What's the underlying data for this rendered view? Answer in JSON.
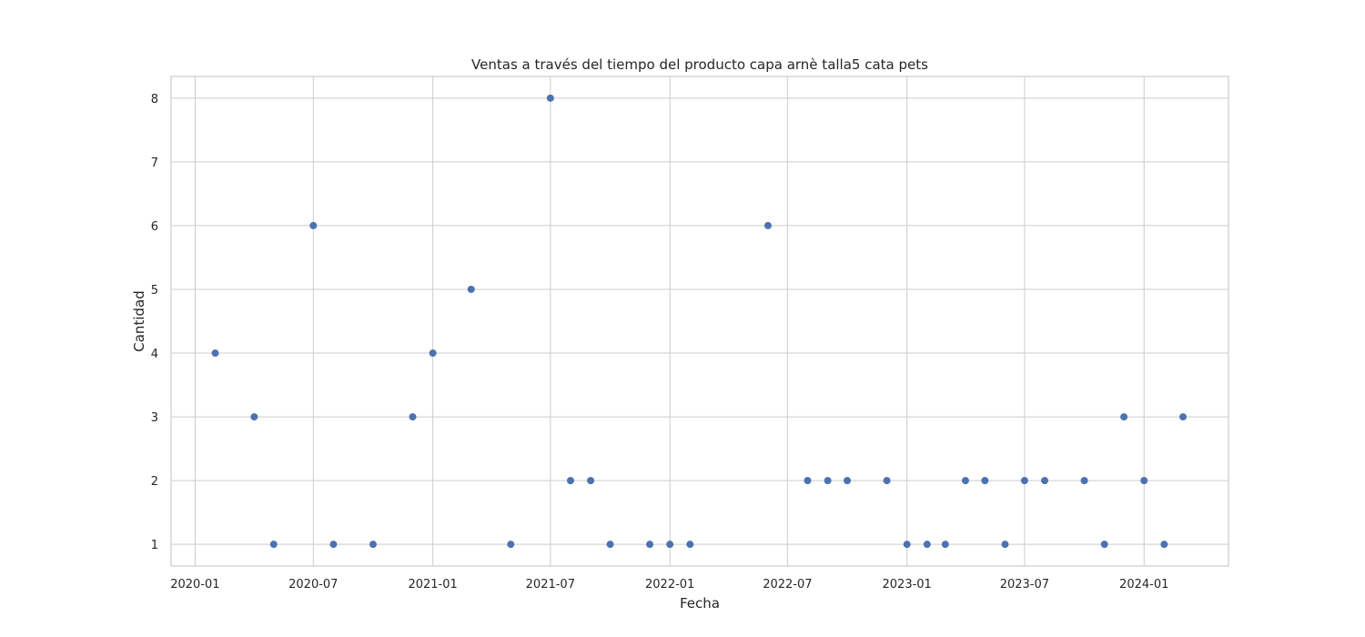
{
  "chart_data": {
    "type": "scatter",
    "title": "Ventas a través del tiempo del producto capa arnè talla5 cata pets",
    "xlabel": "Fecha",
    "ylabel": "Cantidad",
    "x_ticks": [
      "2020-01",
      "2020-07",
      "2021-01",
      "2021-07",
      "2022-01",
      "2022-07",
      "2023-01",
      "2023-07",
      "2024-01"
    ],
    "y_ticks": [
      1,
      2,
      3,
      4,
      5,
      6,
      7,
      8
    ],
    "xlim": [
      "2019-11-25",
      "2024-05-10"
    ],
    "ylim": [
      0.66,
      8.34
    ],
    "grid": true,
    "color": "#4c72b0",
    "points": [
      {
        "x": "2020-02-01",
        "y": 4
      },
      {
        "x": "2020-04-01",
        "y": 3
      },
      {
        "x": "2020-05-01",
        "y": 1
      },
      {
        "x": "2020-07-01",
        "y": 6
      },
      {
        "x": "2020-08-01",
        "y": 1
      },
      {
        "x": "2020-10-01",
        "y": 1
      },
      {
        "x": "2020-12-01",
        "y": 3
      },
      {
        "x": "2021-01-01",
        "y": 4
      },
      {
        "x": "2021-03-01",
        "y": 5
      },
      {
        "x": "2021-05-01",
        "y": 1
      },
      {
        "x": "2021-07-01",
        "y": 8
      },
      {
        "x": "2021-08-01",
        "y": 2
      },
      {
        "x": "2021-09-01",
        "y": 2
      },
      {
        "x": "2021-10-01",
        "y": 1
      },
      {
        "x": "2021-12-01",
        "y": 1
      },
      {
        "x": "2022-01-01",
        "y": 1
      },
      {
        "x": "2022-02-01",
        "y": 1
      },
      {
        "x": "2022-06-01",
        "y": 6
      },
      {
        "x": "2022-08-01",
        "y": 2
      },
      {
        "x": "2022-09-01",
        "y": 2
      },
      {
        "x": "2022-10-01",
        "y": 2
      },
      {
        "x": "2022-12-01",
        "y": 2
      },
      {
        "x": "2023-01-01",
        "y": 1
      },
      {
        "x": "2023-02-01",
        "y": 1
      },
      {
        "x": "2023-03-01",
        "y": 1
      },
      {
        "x": "2023-04-01",
        "y": 2
      },
      {
        "x": "2023-05-01",
        "y": 2
      },
      {
        "x": "2023-06-01",
        "y": 1
      },
      {
        "x": "2023-07-01",
        "y": 2
      },
      {
        "x": "2023-08-01",
        "y": 2
      },
      {
        "x": "2023-10-01",
        "y": 2
      },
      {
        "x": "2023-11-01",
        "y": 1
      },
      {
        "x": "2023-12-01",
        "y": 3
      },
      {
        "x": "2024-01-01",
        "y": 2
      },
      {
        "x": "2024-02-01",
        "y": 1
      },
      {
        "x": "2024-03-01",
        "y": 3
      }
    ]
  }
}
